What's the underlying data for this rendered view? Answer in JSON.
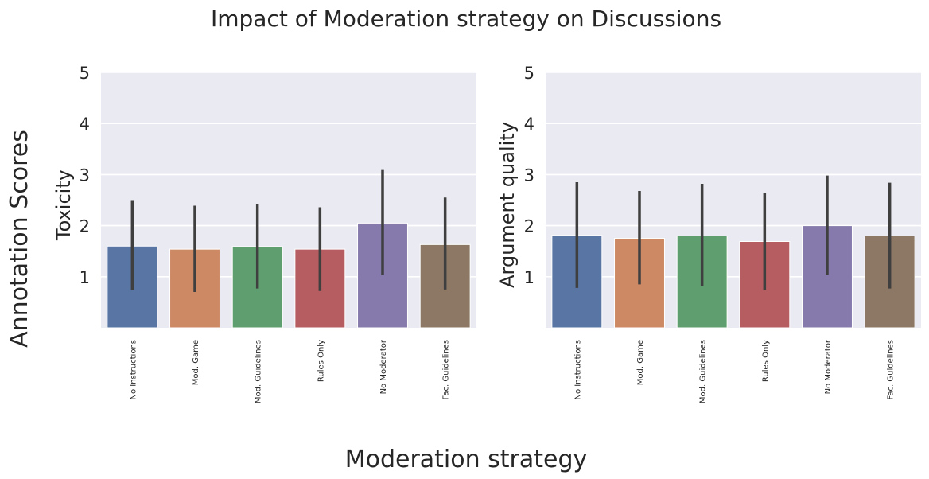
{
  "figure": {
    "title": "Impact of Moderation strategy on Discussions",
    "supxlabel": "Moderation strategy",
    "supylabel": "Annotation Scores"
  },
  "chart_data": [
    {
      "type": "bar",
      "title": "",
      "xlabel": "",
      "ylabel": "Toxicity",
      "ylim": [
        0,
        5
      ],
      "yticks": [
        1,
        2,
        3,
        4,
        5
      ],
      "grid": true,
      "categories": [
        "No Instructions",
        "Mod. Game",
        "Mod. Guidelines",
        "Rules Only",
        "No Moderator",
        "Fac. Guidelines"
      ],
      "values": [
        1.6,
        1.54,
        1.59,
        1.54,
        2.05,
        1.63
      ],
      "error_low": [
        0.74,
        0.7,
        0.77,
        0.72,
        1.03,
        0.75
      ],
      "error_high": [
        2.5,
        2.39,
        2.42,
        2.36,
        3.09,
        2.55
      ],
      "colors": [
        "#5875a4",
        "#cc8963",
        "#5f9e6e",
        "#b55d60",
        "#857aab",
        "#8d7866"
      ]
    },
    {
      "type": "bar",
      "title": "",
      "xlabel": "",
      "ylabel": "Argument quality",
      "ylim": [
        0,
        5
      ],
      "yticks": [
        1,
        2,
        3,
        4,
        5
      ],
      "grid": true,
      "categories": [
        "No Instructions",
        "Mod. Game",
        "Mod. Guidelines",
        "Rules Only",
        "No Moderator",
        "Fac. Guidelines"
      ],
      "values": [
        1.81,
        1.75,
        1.8,
        1.69,
        2.0,
        1.8
      ],
      "error_low": [
        0.78,
        0.85,
        0.81,
        0.74,
        1.04,
        0.77
      ],
      "error_high": [
        2.85,
        2.68,
        2.82,
        2.64,
        2.98,
        2.84
      ],
      "colors": [
        "#5875a4",
        "#cc8963",
        "#5f9e6e",
        "#b55d60",
        "#857aab",
        "#8d7866"
      ]
    }
  ]
}
